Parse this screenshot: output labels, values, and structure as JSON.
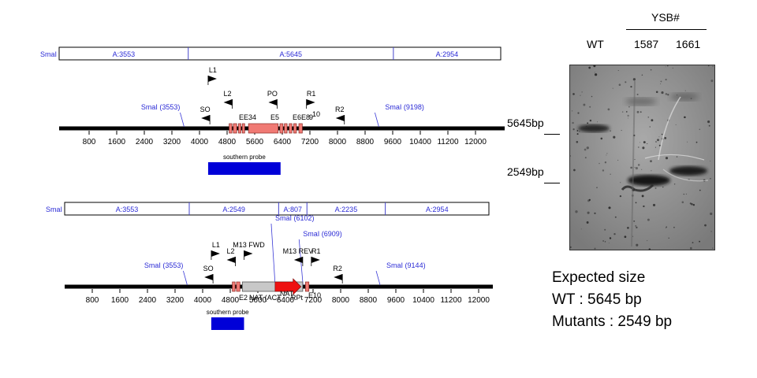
{
  "colors": {
    "backbone": "#000000",
    "site_label": "#2b2bd6",
    "exon": "#f07a74",
    "cassette": "#c8c8c8",
    "nat_arrow": "#ee1111",
    "probe": "#0000d8",
    "gel_background": "#8d8d8d"
  },
  "maps": [
    {
      "id": "wild-type",
      "fragments_bar": {
        "site_label": "SmaI",
        "fragments": [
          {
            "label": "A:3553",
            "start": 0,
            "end": 3553
          },
          {
            "label": "A:5645",
            "start": 3553,
            "end": 9198
          },
          {
            "label": "A:2954",
            "start": 9198,
            "end": 12152
          }
        ]
      },
      "restriction_sites": [
        {
          "label": "SmaI (3553)",
          "pos": 3553
        },
        {
          "label": "SmaI (9198)",
          "pos": 9198
        }
      ],
      "primers": [
        {
          "label": "L1",
          "pos": 4250,
          "dir": "R"
        },
        {
          "label": "L2",
          "pos": 4950,
          "dir": "L"
        },
        {
          "label": "PO",
          "pos": 6250,
          "dir": "L"
        },
        {
          "label": "R1",
          "pos": 7100,
          "dir": "R"
        },
        {
          "label": "R2",
          "pos": 8200,
          "dir": "L"
        },
        {
          "label": "SO",
          "pos": 4300,
          "dir": "L"
        }
      ],
      "features": [
        {
          "label": "E1",
          "start": 4860,
          "end": 4940
        },
        {
          "label": "E2",
          "start": 4980,
          "end": 5080
        },
        {
          "label": "E3",
          "start": 5130,
          "end": 5200
        },
        {
          "label": "E4",
          "start": 5240,
          "end": 5310
        },
        {
          "label": "E5",
          "start": 5420,
          "end": 6280
        },
        {
          "label": "E6",
          "start": 6330,
          "end": 6420
        },
        {
          "label": "E6",
          "start": 6460,
          "end": 6540
        },
        {
          "label": "E8",
          "start": 6600,
          "end": 6680
        },
        {
          "label": "E9",
          "start": 6730,
          "end": 6810
        },
        {
          "label": "E10",
          "start": 6880,
          "end": 6980
        }
      ],
      "feature_text": [
        {
          "text": "E",
          "x": 303,
          "y": 152
        },
        {
          "text": "E34",
          "x": 309,
          "y": 152
        },
        {
          "text": "E5",
          "x": 343,
          "y": 152
        },
        {
          "text": "E6E8",
          "x": 371,
          "y": 152
        },
        {
          "text": "9",
          "x": 392,
          "y": 152
        },
        {
          "text": "10",
          "x": 396,
          "y": 148
        }
      ],
      "ticks": [
        "800",
        "1600",
        "2400",
        "3200",
        "4000",
        "4800",
        "5600",
        "6400",
        "7200",
        "8000",
        "8800",
        "9600",
        "10400",
        "11200",
        "12000"
      ],
      "probe": {
        "label": "southern probe",
        "start": 4250,
        "end": 6350
      }
    },
    {
      "id": "mutant",
      "fragments_bar": {
        "site_label": "SmaI",
        "fragments": [
          {
            "label": "A:3553",
            "start": 0,
            "end": 3553
          },
          {
            "label": "A:2549",
            "start": 3553,
            "end": 6102
          },
          {
            "label": "A:807",
            "start": 6102,
            "end": 6909
          },
          {
            "label": "A:2235",
            "start": 6909,
            "end": 9144
          },
          {
            "label": "A:2954",
            "start": 9144,
            "end": 12098
          }
        ]
      },
      "restriction_sites": [
        {
          "label": "SmaI (3553)",
          "pos": 3553
        },
        {
          "label": "SmaI (6102)",
          "pos": 6102
        },
        {
          "label": "SmaI (6909)",
          "pos": 6909
        },
        {
          "label": "SmaI (9144)",
          "pos": 9144
        }
      ],
      "primers": [
        {
          "label": "L1",
          "pos": 4250,
          "dir": "R"
        },
        {
          "label": "M13 FWD",
          "pos": 5200,
          "dir": "R"
        },
        {
          "label": "L2",
          "pos": 4950,
          "dir": "L"
        },
        {
          "label": "M13 REV",
          "pos": 6900,
          "dir": "L"
        },
        {
          "label": "R1",
          "pos": 7150,
          "dir": "R"
        },
        {
          "label": "R2",
          "pos": 8050,
          "dir": "L"
        },
        {
          "label": "SO",
          "pos": 4300,
          "dir": "L"
        }
      ],
      "features": [
        {
          "label": "E1",
          "start": 4860,
          "end": 4940
        },
        {
          "label": "E2",
          "start": 4980,
          "end": 5080
        },
        {
          "label": "E10",
          "start": 6980,
          "end": 7080
        }
      ],
      "cassette": {
        "label": "NAT (ACT",
        "start": 5150,
        "end": 6900
      },
      "nat_arrow": {
        "label": "NAT",
        "start": 6100,
        "end": 6850
      },
      "feature_text": [
        {
          "text": "E2",
          "x": 303,
          "y": 381
        },
        {
          "text": "NAT (ACT",
          "x": 316,
          "y": 381
        },
        {
          "text": "NAT",
          "x": 355,
          "y": 376
        },
        {
          "text": "RPt",
          "x": 369,
          "y": 381
        },
        {
          "text": "E10",
          "x": 391,
          "y": 378
        }
      ],
      "ticks": [
        "800",
        "1600",
        "2400",
        "3200",
        "4000",
        "4800",
        "5600",
        "6400",
        "7200",
        "8000",
        "8800",
        "9600",
        "10400",
        "11200",
        "12000"
      ],
      "probe": {
        "label": "southern probe",
        "start": 4250,
        "end": 5200
      }
    }
  ],
  "gel": {
    "group_label": "YSB#",
    "lanes": [
      "WT",
      "1587",
      "1661"
    ],
    "markers": [
      "5645bp",
      "2549bp"
    ],
    "bands": [
      {
        "lane": "WT",
        "size": 5645
      },
      {
        "lane": "1587",
        "size": 2549
      },
      {
        "lane": "1661",
        "size": 2549
      }
    ]
  },
  "expected": {
    "title": "Expected size",
    "wt_line": "WT : 5645 bp",
    "mut_line": "Mutants : 2549 bp"
  }
}
